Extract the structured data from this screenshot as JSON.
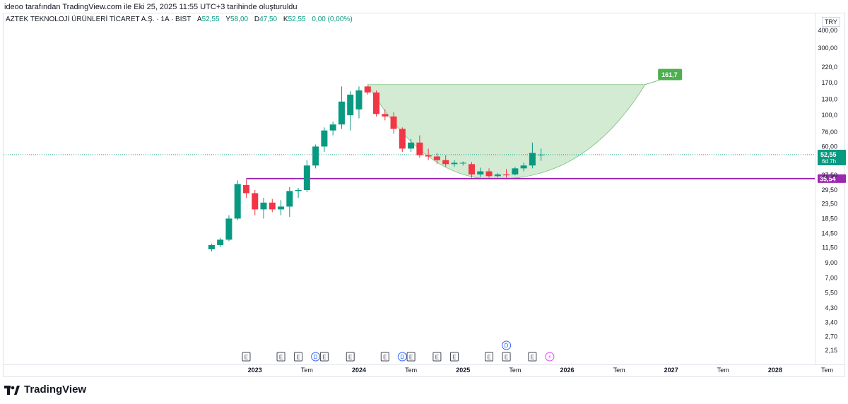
{
  "header": {
    "published_by": "ideoo tarafından TradingView.com ile Eki 25, 2025 11:55 UTC+3 tarihinde oluşturuldu"
  },
  "symbol": {
    "name": "AZTEK TEKNOLOJİ ÜRÜNLERİ TİCARET A.Ş. · 1A · BIST",
    "open_key": "A",
    "open": "52,55",
    "high_key": "Y",
    "high": "58,00",
    "low_key": "D",
    "low": "47,50",
    "close_key": "K",
    "close": "52,55",
    "change": "0,00 (0,00%)"
  },
  "currency": "TRY",
  "colors": {
    "up": "#089981",
    "down": "#f23645",
    "support": "#9c27b0",
    "cup_fill": "#cbe8cb",
    "target_badge": "#4caf50",
    "price_badge": "#089981"
  },
  "logo_text": "TradingView",
  "chart_data": {
    "type": "candlestick",
    "interval": "1 month",
    "scale": "logarithmic",
    "ylim": [
      1.95,
      520
    ],
    "y_ticks": [
      {
        "v": 400,
        "label": "400,00"
      },
      {
        "v": 300,
        "label": "300,00"
      },
      {
        "v": 220,
        "label": "220,0"
      },
      {
        "v": 170,
        "label": "170,0"
      },
      {
        "v": 130,
        "label": "130,0"
      },
      {
        "v": 100,
        "label": "100,0"
      },
      {
        "v": 76,
        "label": "76,00"
      },
      {
        "v": 60,
        "label": "60,00"
      },
      {
        "v": 37.5,
        "label": "37,50"
      },
      {
        "v": 29.5,
        "label": "29,50"
      },
      {
        "v": 23.5,
        "label": "23,50"
      },
      {
        "v": 18.5,
        "label": "18,50"
      },
      {
        "v": 14.5,
        "label": "14,50"
      },
      {
        "v": 11.5,
        "label": "11,50"
      },
      {
        "v": 9,
        "label": "9,00"
      },
      {
        "v": 7,
        "label": "7,00"
      },
      {
        "v": 5.5,
        "label": "5,50"
      },
      {
        "v": 4.3,
        "label": "4,30"
      },
      {
        "v": 3.4,
        "label": "3,40"
      },
      {
        "v": 2.7,
        "label": "2,70"
      },
      {
        "v": 2.15,
        "label": "2,15"
      }
    ],
    "x_ticks": [
      {
        "t": 12,
        "label": "2023",
        "bold": true
      },
      {
        "t": 18,
        "label": "Tem",
        "bold": false
      },
      {
        "t": 24,
        "label": "2024",
        "bold": true
      },
      {
        "t": 30,
        "label": "Tem",
        "bold": false
      },
      {
        "t": 36,
        "label": "2025",
        "bold": true
      },
      {
        "t": 42,
        "label": "Tem",
        "bold": false
      },
      {
        "t": 48,
        "label": "2026",
        "bold": true
      },
      {
        "t": 54,
        "label": "Tem",
        "bold": false
      },
      {
        "t": 60,
        "label": "2027",
        "bold": true
      },
      {
        "t": 66,
        "label": "Tem",
        "bold": false
      },
      {
        "t": 72,
        "label": "2028",
        "bold": true
      },
      {
        "t": 78,
        "label": "Tem",
        "bold": false
      }
    ],
    "candles": [
      {
        "t": 7,
        "o": 11.2,
        "h": 12.3,
        "l": 10.8,
        "c": 12.0
      },
      {
        "t": 8,
        "o": 12.0,
        "h": 13.5,
        "l": 11.6,
        "c": 13.1
      },
      {
        "t": 9,
        "o": 13.1,
        "h": 19.5,
        "l": 12.8,
        "c": 18.5
      },
      {
        "t": 10,
        "o": 18.5,
        "h": 34.5,
        "l": 18.0,
        "c": 32.5
      },
      {
        "t": 11,
        "o": 32.0,
        "h": 35.0,
        "l": 26.0,
        "c": 28.0
      },
      {
        "t": 12,
        "o": 28.0,
        "h": 29.5,
        "l": 19.5,
        "c": 21.5
      },
      {
        "t": 13,
        "o": 21.5,
        "h": 26.0,
        "l": 18.5,
        "c": 24.0
      },
      {
        "t": 14,
        "o": 24.0,
        "h": 25.5,
        "l": 20.5,
        "c": 21.5
      },
      {
        "t": 15,
        "o": 21.5,
        "h": 25.0,
        "l": 19.5,
        "c": 22.5
      },
      {
        "t": 16,
        "o": 22.5,
        "h": 31.0,
        "l": 19.0,
        "c": 29.0
      },
      {
        "t": 17,
        "o": 29.0,
        "h": 30.5,
        "l": 26.0,
        "c": 29.5
      },
      {
        "t": 18,
        "o": 29.5,
        "h": 48.0,
        "l": 28.5,
        "c": 44.0
      },
      {
        "t": 19,
        "o": 44.0,
        "h": 62.0,
        "l": 42.0,
        "c": 60.0
      },
      {
        "t": 20,
        "o": 60.0,
        "h": 82.0,
        "l": 55.0,
        "c": 78.0
      },
      {
        "t": 21,
        "o": 78.0,
        "h": 90.0,
        "l": 72.0,
        "c": 86.0
      },
      {
        "t": 22,
        "o": 86.0,
        "h": 160.0,
        "l": 80.0,
        "c": 125.0
      },
      {
        "t": 23,
        "o": 100.0,
        "h": 148.0,
        "l": 78.0,
        "c": 140.0
      },
      {
        "t": 24,
        "o": 110.0,
        "h": 160.0,
        "l": 95.0,
        "c": 150.0
      },
      {
        "t": 25,
        "o": 160.0,
        "h": 162.0,
        "l": 140.0,
        "c": 145.0
      },
      {
        "t": 26,
        "o": 145.0,
        "h": 150.0,
        "l": 98.0,
        "c": 102.0
      },
      {
        "t": 27,
        "o": 102.0,
        "h": 110.0,
        "l": 92.0,
        "c": 98.0
      },
      {
        "t": 28,
        "o": 98.0,
        "h": 105.0,
        "l": 74.0,
        "c": 80.0
      },
      {
        "t": 29,
        "o": 80.0,
        "h": 82.0,
        "l": 55.0,
        "c": 58.0
      },
      {
        "t": 30,
        "o": 58.0,
        "h": 68.0,
        "l": 55.0,
        "c": 64.0
      },
      {
        "t": 31,
        "o": 64.0,
        "h": 72.0,
        "l": 50.0,
        "c": 52.0
      },
      {
        "t": 32,
        "o": 52.0,
        "h": 58.0,
        "l": 48.0,
        "c": 51.0
      },
      {
        "t": 33,
        "o": 51.0,
        "h": 54.0,
        "l": 45.0,
        "c": 48.0
      },
      {
        "t": 34,
        "o": 48.0,
        "h": 52.0,
        "l": 43.0,
        "c": 45.0
      },
      {
        "t": 35,
        "o": 45.0,
        "h": 48.0,
        "l": 43.0,
        "c": 46.0
      },
      {
        "t": 36,
        "o": 45.5,
        "h": 47.0,
        "l": 44.0,
        "c": 46.0
      },
      {
        "t": 37,
        "o": 45.0,
        "h": 46.5,
        "l": 36.0,
        "c": 38.0
      },
      {
        "t": 38,
        "o": 38.0,
        "h": 42.5,
        "l": 36.5,
        "c": 40.0
      },
      {
        "t": 39,
        "o": 40.0,
        "h": 42.0,
        "l": 36.0,
        "c": 37.0
      },
      {
        "t": 40,
        "o": 37.0,
        "h": 39.0,
        "l": 36.2,
        "c": 38.0
      },
      {
        "t": 41,
        "o": 38.0,
        "h": 41.5,
        "l": 36.0,
        "c": 37.5
      },
      {
        "t": 42,
        "o": 38.0,
        "h": 43.0,
        "l": 37.5,
        "c": 42.0
      },
      {
        "t": 43,
        "o": 42.0,
        "h": 46.0,
        "l": 40.0,
        "c": 44.0
      },
      {
        "t": 44,
        "o": 44.0,
        "h": 64.0,
        "l": 42.0,
        "c": 54.0
      },
      {
        "t": 45,
        "o": 52.55,
        "h": 58.0,
        "l": 47.5,
        "c": 52.55
      }
    ],
    "support_line": {
      "value": 35.54,
      "label": "35,54",
      "t_start": 11
    },
    "current_price": {
      "value": 52.55,
      "label": "52,55",
      "countdown": "6d 7h"
    },
    "cup_pattern": {
      "rim_high": 165,
      "bottom": 35.54,
      "t_start": 25,
      "t_bottom": 40,
      "t_end": 57
    },
    "target": {
      "value": 161.7,
      "label": "161,7",
      "t": 58
    },
    "events": [
      {
        "t": 11,
        "type": "E",
        "row": 0
      },
      {
        "t": 15,
        "type": "E",
        "row": 0
      },
      {
        "t": 17,
        "type": "E",
        "row": 0
      },
      {
        "t": 19,
        "type": "D",
        "row": 0
      },
      {
        "t": 20,
        "type": "E",
        "row": 0
      },
      {
        "t": 23,
        "type": "E",
        "row": 0
      },
      {
        "t": 27,
        "type": "E",
        "row": 0
      },
      {
        "t": 29,
        "type": "D",
        "row": 0
      },
      {
        "t": 30,
        "type": "E",
        "row": 0
      },
      {
        "t": 33,
        "type": "E",
        "row": 0
      },
      {
        "t": 35,
        "type": "E",
        "row": 0
      },
      {
        "t": 39,
        "type": "E",
        "row": 0
      },
      {
        "t": 41,
        "type": "E",
        "row": 0
      },
      {
        "t": 41,
        "type": "D",
        "row": 1
      },
      {
        "t": 44,
        "type": "E",
        "row": 0
      },
      {
        "t": 46,
        "type": "⚡",
        "row": 0
      }
    ]
  }
}
